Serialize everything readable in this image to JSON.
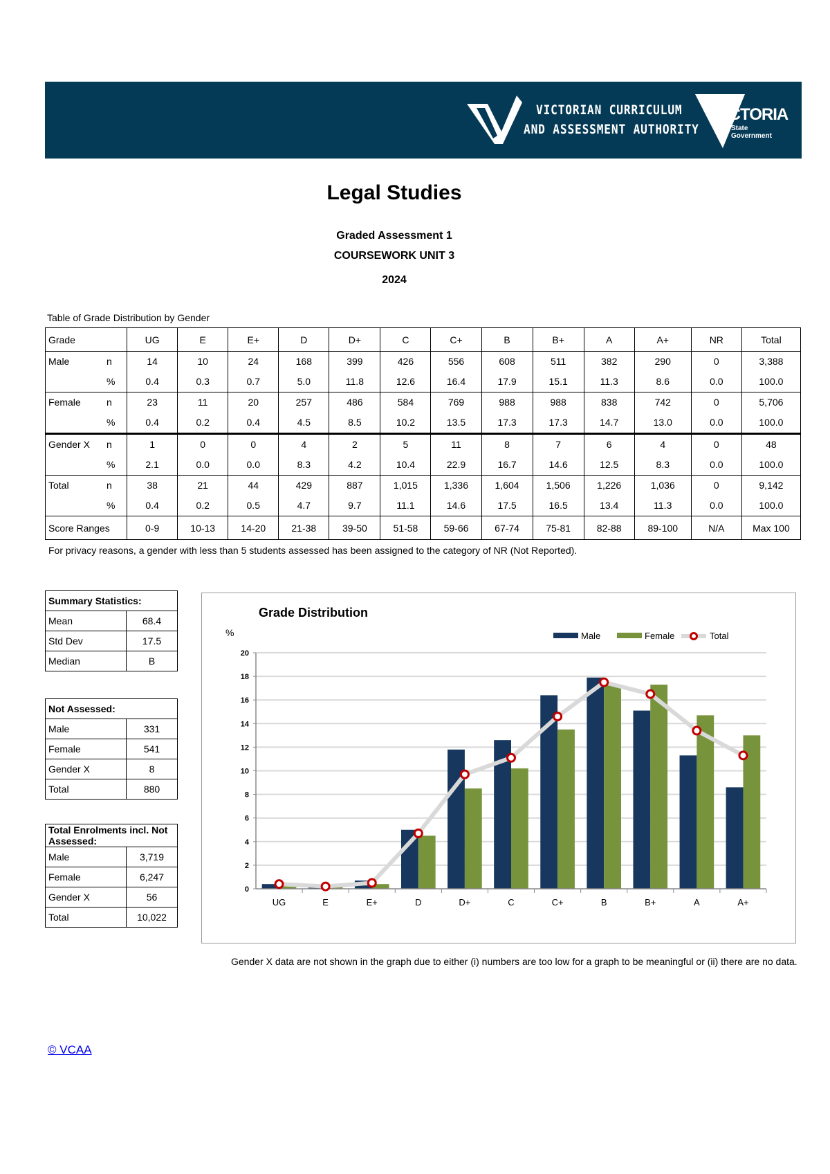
{
  "banner": {
    "org_name_line1": "VICTORIAN CURRICULUM",
    "org_name_line2": "AND ASSESSMENT AUTHORITY",
    "gov_logo": "VICTORIA",
    "gov_logo_sub1": "State",
    "gov_logo_sub2": "Government",
    "color": "#053a56"
  },
  "header": {
    "title": "Legal Studies",
    "subtitle1": "Graded Assessment 1",
    "subtitle2": "COURSEWORK UNIT 3",
    "year": "2024"
  },
  "grade_table": {
    "caption": "Table of Grade Distribution by Gender",
    "header_label": "Grade",
    "columns": [
      "UG",
      "E",
      "E+",
      "D",
      "D+",
      "C",
      "C+",
      "B",
      "B+",
      "A",
      "A+",
      "NR",
      "Total"
    ],
    "n_label": "n",
    "pct_label": "%",
    "groups": [
      {
        "label": "Male",
        "n": [
          "14",
          "10",
          "24",
          "168",
          "399",
          "426",
          "556",
          "608",
          "511",
          "382",
          "290",
          "0",
          "3,388"
        ],
        "pct": [
          "0.4",
          "0.3",
          "0.7",
          "5.0",
          "11.8",
          "12.6",
          "16.4",
          "17.9",
          "15.1",
          "11.3",
          "8.6",
          "0.0",
          "100.0"
        ]
      },
      {
        "label": "Female",
        "n": [
          "23",
          "11",
          "20",
          "257",
          "486",
          "584",
          "769",
          "988",
          "988",
          "838",
          "742",
          "0",
          "5,706"
        ],
        "pct": [
          "0.4",
          "0.2",
          "0.4",
          "4.5",
          "8.5",
          "10.2",
          "13.5",
          "17.3",
          "17.3",
          "14.7",
          "13.0",
          "0.0",
          "100.0"
        ]
      },
      {
        "label": "Gender X",
        "n": [
          "1",
          "0",
          "0",
          "4",
          "2",
          "5",
          "11",
          "8",
          "7",
          "6",
          "4",
          "0",
          "48"
        ],
        "pct": [
          "2.1",
          "0.0",
          "0.0",
          "8.3",
          "4.2",
          "10.4",
          "22.9",
          "16.7",
          "14.6",
          "12.5",
          "8.3",
          "0.0",
          "100.0"
        ]
      },
      {
        "label": "Total",
        "n": [
          "38",
          "21",
          "44",
          "429",
          "887",
          "1,015",
          "1,336",
          "1,604",
          "1,506",
          "1,226",
          "1,036",
          "0",
          "9,142"
        ],
        "pct": [
          "0.4",
          "0.2",
          "0.5",
          "4.7",
          "9.7",
          "11.1",
          "14.6",
          "17.5",
          "16.5",
          "13.4",
          "11.3",
          "0.0",
          "100.0"
        ]
      }
    ],
    "score_ranges_label": "Score Ranges",
    "score_ranges": [
      "0-9",
      "10-13",
      "14-20",
      "21-38",
      "39-50",
      "51-58",
      "59-66",
      "67-74",
      "75-81",
      "82-88",
      "89-100",
      "N/A",
      "Max 100"
    ],
    "footnote": "For privacy reasons, a gender with less than 5 students assessed has been assigned to the category of NR (Not Reported)."
  },
  "summary_statistics": {
    "heading": "Summary Statistics:",
    "rows": [
      {
        "label": "Mean",
        "value": "68.4"
      },
      {
        "label": "Std Dev",
        "value": "17.5"
      },
      {
        "label": "Median",
        "value": "B"
      }
    ]
  },
  "not_assessed": {
    "heading": "Not Assessed:",
    "rows": [
      {
        "label": "Male",
        "value": "331"
      },
      {
        "label": "Female",
        "value": "541"
      },
      {
        "label": "Gender X",
        "value": "8"
      },
      {
        "label": "Total",
        "value": "880"
      }
    ]
  },
  "total_enrolments": {
    "heading": "Total Enrolments incl. Not Assessed:",
    "rows": [
      {
        "label": "Male",
        "value": "3,719"
      },
      {
        "label": "Female",
        "value": "6,247"
      },
      {
        "label": "Gender X",
        "value": "56"
      },
      {
        "label": "Total",
        "value": "10,022"
      }
    ]
  },
  "chart_data": {
    "type": "bar",
    "title": "Grade Distribution",
    "ylabel": "%",
    "xlabel": "",
    "ylim": [
      0,
      20
    ],
    "yticks": [
      0,
      2,
      4,
      6,
      8,
      10,
      12,
      14,
      16,
      18,
      20
    ],
    "grid": true,
    "legend": "top-right",
    "categories": [
      "UG",
      "E",
      "E+",
      "D",
      "D+",
      "C",
      "C+",
      "B",
      "B+",
      "A",
      "A+"
    ],
    "series": [
      {
        "name": "Male",
        "type": "bar",
        "color": "#17375e",
        "values": [
          0.4,
          0.3,
          0.7,
          5.0,
          11.8,
          12.6,
          16.4,
          17.9,
          15.1,
          11.3,
          8.6
        ]
      },
      {
        "name": "Female",
        "type": "bar",
        "color": "#77933c",
        "values": [
          0.4,
          0.2,
          0.4,
          4.5,
          8.5,
          10.2,
          13.5,
          17.3,
          17.3,
          14.7,
          13.0
        ]
      },
      {
        "name": "Total",
        "type": "line",
        "color": "#d9d9d9",
        "marker_color": "#c00000",
        "values": [
          0.4,
          0.2,
          0.5,
          4.7,
          9.7,
          11.1,
          14.6,
          17.5,
          16.5,
          13.4,
          11.3
        ]
      }
    ]
  },
  "chart_note": "Gender X data are not shown in the graph due to either (i) numbers are too low for a graph to be meaningful or (ii) there are no data.",
  "copyright_link": "© VCAA"
}
